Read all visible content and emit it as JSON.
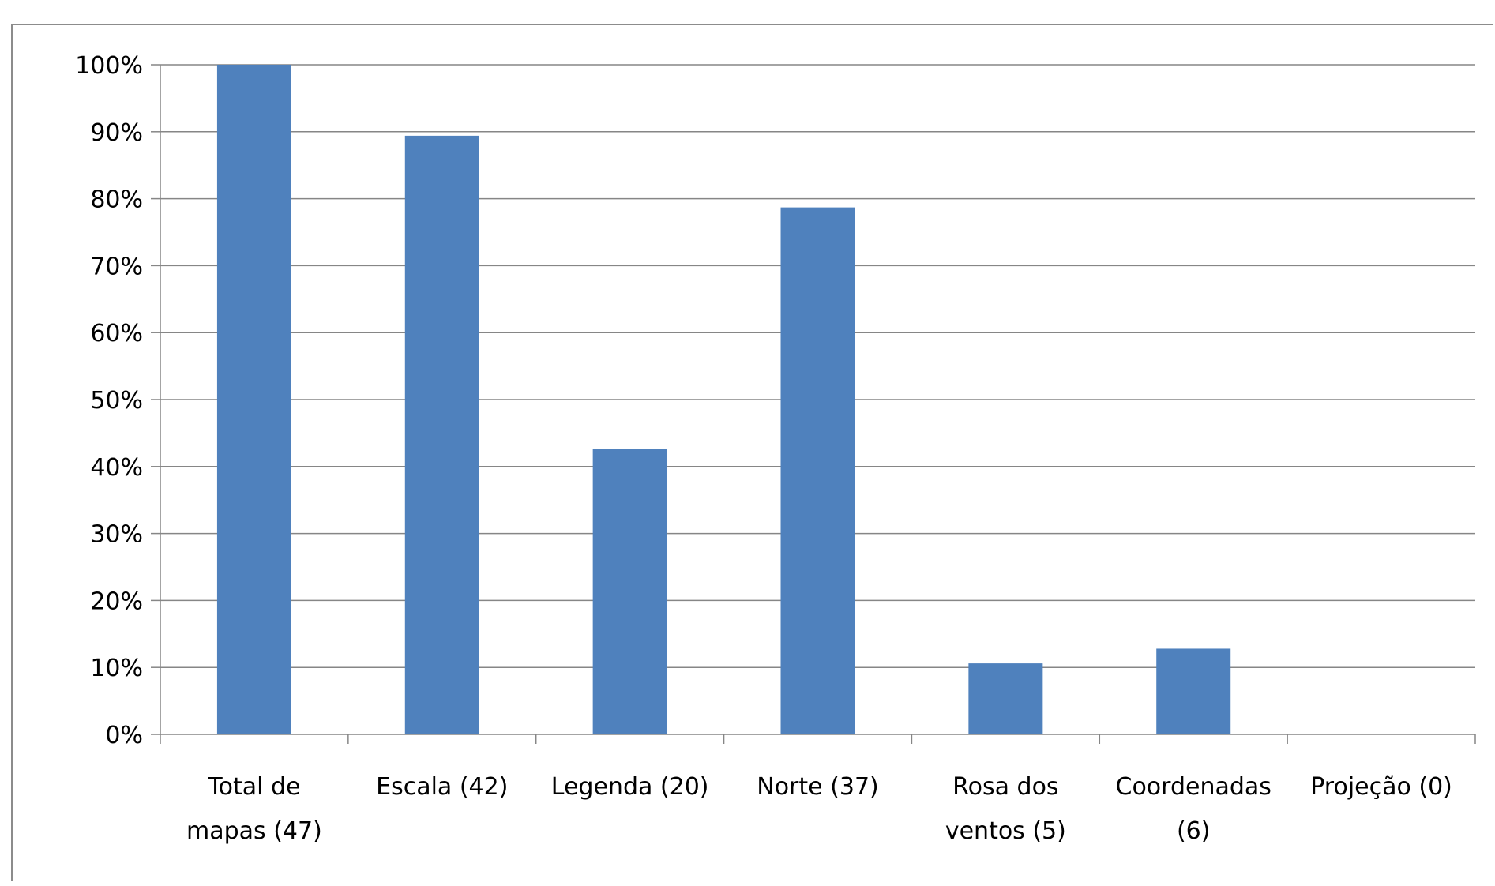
{
  "chart_data": {
    "type": "bar",
    "categories": [
      "Total de mapas (47)",
      "Escala (42)",
      "Legenda (20)",
      "Norte (37)",
      "Rosa dos ventos (5)",
      "Coordenadas (6)",
      "Projeção (0)"
    ],
    "category_lines": [
      [
        "Total de",
        "mapas (47)"
      ],
      [
        "Escala (42)"
      ],
      [
        "Legenda (20)"
      ],
      [
        "Norte (37)"
      ],
      [
        "Rosa dos",
        "ventos (5)"
      ],
      [
        "Coordenadas",
        "(6)"
      ],
      [
        "Projeção (0)"
      ]
    ],
    "values": [
      100,
      89.4,
      42.6,
      78.7,
      10.6,
      12.8,
      0
    ],
    "ylim": [
      0,
      100
    ],
    "yticks": [
      "0%",
      "10%",
      "20%",
      "30%",
      "40%",
      "50%",
      "60%",
      "70%",
      "80%",
      "90%",
      "100%"
    ],
    "grid": true,
    "bar_color": "#4f81bd",
    "grid_color": "#868686"
  }
}
